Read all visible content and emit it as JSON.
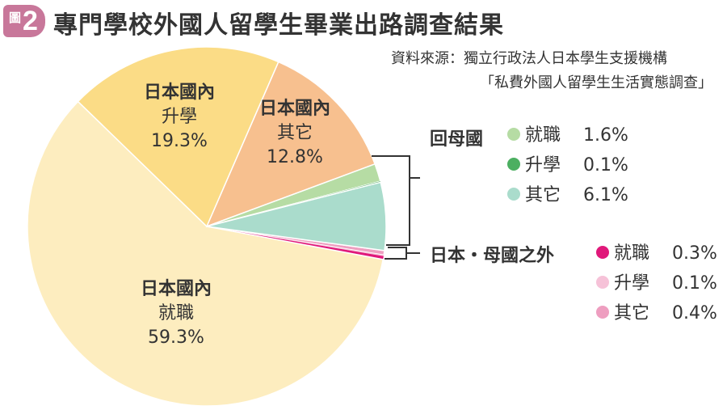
{
  "header": {
    "badge_kanji": "圖",
    "badge_number": "2",
    "title": "專門學校外國人留學生畢業出路調查結果",
    "source_line1": "資料來源：獨立行政法人日本學生支援機構",
    "source_line2": "「私費外國人留學生生活實態調查」"
  },
  "pie_labels": [
    {
      "title": "日本國內",
      "sub": "就職",
      "value": "59.3%"
    },
    {
      "title": "日本國內",
      "sub": "升學",
      "value": "19.3%"
    },
    {
      "title": "日本國內",
      "sub": "其它",
      "value": "12.8%"
    }
  ],
  "groups": [
    {
      "title": "回母國",
      "items": [
        {
          "name": "就職",
          "value": "1.6%"
        },
        {
          "name": "升學",
          "value": "0.1%"
        },
        {
          "name": "其它",
          "value": "6.1%"
        }
      ]
    },
    {
      "title": "日本・母國之外",
      "items": [
        {
          "name": "就職",
          "value": "0.3%"
        },
        {
          "name": "升學",
          "value": "0.1%"
        },
        {
          "name": "其它",
          "value": "0.4%"
        }
      ]
    }
  ],
  "chart_data": {
    "type": "pie",
    "title": "專門學校外國人留學生畢業出路調查結果",
    "unit": "%",
    "slices": [
      {
        "group": "日本國內",
        "label": "就職",
        "value": 59.3,
        "color": "#fdedbf"
      },
      {
        "group": "日本國內",
        "label": "升學",
        "value": 19.3,
        "color": "#fbdc86"
      },
      {
        "group": "日本國內",
        "label": "其它",
        "value": 12.8,
        "color": "#f7c08f"
      },
      {
        "group": "回母國",
        "label": "就職",
        "value": 1.6,
        "color": "#b6dca4"
      },
      {
        "group": "回母國",
        "label": "升學",
        "value": 0.1,
        "color": "#4caf61"
      },
      {
        "group": "回母國",
        "label": "其它",
        "value": 6.1,
        "color": "#aadccc"
      },
      {
        "group": "日本・母國之外",
        "label": "就職",
        "value": 0.3,
        "color": "#e0187a"
      },
      {
        "group": "日本・母國之外",
        "label": "升學",
        "value": 0.1,
        "color": "#f6c2d8"
      },
      {
        "group": "日本・母國之外",
        "label": "其它",
        "value": 0.4,
        "color": "#ee9ec0"
      }
    ],
    "slice_order": [
      "日本國內-就職",
      "日本國內-升學",
      "日本國內-其它",
      "回母國-就職",
      "回母國-升學",
      "回母國-其它",
      "日本・母國之外-就職",
      "日本・母國之外-升學",
      "日本・母國之外-其它"
    ],
    "start_at": "right, clockwise",
    "legend_position": "right"
  }
}
